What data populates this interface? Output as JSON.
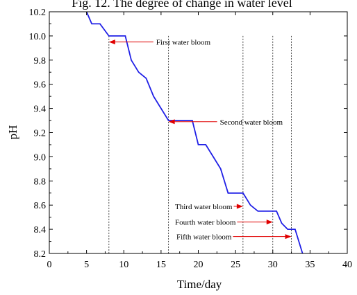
{
  "chart_data": {
    "type": "line",
    "title": "Fig. 12. The degree of change in water level",
    "xlabel": "Time/day",
    "ylabel": "pH",
    "xlim": [
      0,
      40
    ],
    "ylim": [
      8.2,
      10.2
    ],
    "x_ticks": [
      "0",
      "5",
      "10",
      "15",
      "20",
      "25",
      "30",
      "35",
      "40"
    ],
    "y_ticks": [
      "8.2",
      "8.4",
      "8.6",
      "8.8",
      "9.0",
      "9.2",
      "9.4",
      "9.6",
      "9.8",
      "10.0",
      "10.2"
    ],
    "grid": false,
    "series": [
      {
        "color": "#1f1fe6",
        "x": [
          5,
          5.7,
          6.8,
          8,
          10.2,
          11,
          12,
          13,
          14,
          15,
          16,
          19.2,
          20,
          21,
          22,
          23,
          24,
          26,
          27,
          28,
          29,
          30.5,
          31.2,
          32,
          33,
          34
        ],
        "y": [
          10.2,
          10.1,
          10.1,
          10.0,
          10.0,
          9.8,
          9.7,
          9.65,
          9.5,
          9.4,
          9.3,
          9.3,
          9.1,
          9.1,
          9.0,
          8.9,
          8.7,
          8.7,
          8.6,
          8.55,
          8.55,
          8.55,
          8.45,
          8.4,
          8.4,
          8.2
        ]
      }
    ],
    "vertical_markers": [
      8,
      16,
      26,
      30,
      32.5
    ],
    "annotations": [
      {
        "text": "First water bloom",
        "arrow_to": [
          8,
          9.95
        ]
      },
      {
        "text": "Second water bloom",
        "arrow_to": [
          16,
          9.29
        ]
      },
      {
        "text": "Third water bloom",
        "arrow_to": [
          26,
          8.59
        ]
      },
      {
        "text": "Fourth water bloom",
        "arrow_to": [
          30,
          8.46
        ]
      },
      {
        "text": "Fifth water bloom",
        "arrow_to": [
          32.5,
          8.34
        ]
      }
    ],
    "colors": {
      "line": "#1f1fe6",
      "arrow": "#e00000"
    }
  }
}
